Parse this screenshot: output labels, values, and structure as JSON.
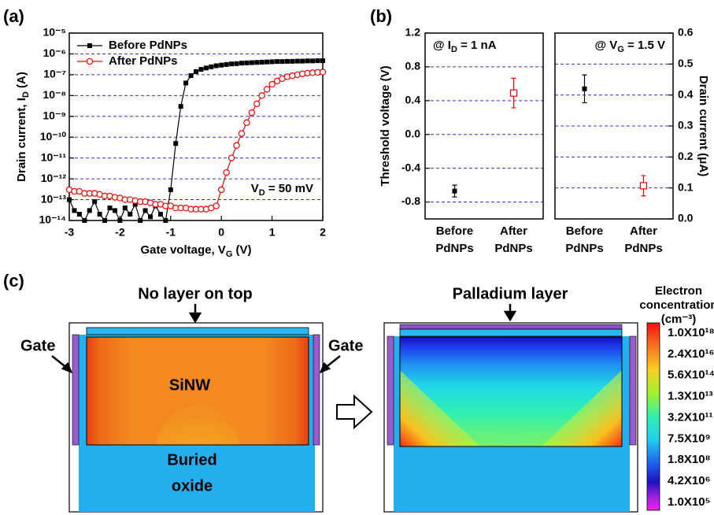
{
  "panel_labels": [
    "(a)",
    "(b)",
    "(c)"
  ],
  "chart_data": [
    {
      "type": "line",
      "log_y": true,
      "grid": true,
      "legend": "upper left",
      "xlabel": [
        "Gate voltage, V",
        "G",
        " (V)"
      ],
      "ylabel": [
        "Drain current, I",
        "D",
        " (A)"
      ],
      "annotation": [
        "V",
        "D",
        " = 50 mV"
      ],
      "xlim": [
        -3,
        2
      ],
      "xticks": [
        -3,
        -2,
        -1,
        0,
        1,
        2
      ],
      "ylim": [
        1e-14,
        1e-05
      ],
      "yticks": [
        {
          "value": 1e-14,
          "label": "10⁻¹⁴"
        },
        {
          "value": 1e-13,
          "label": "10⁻¹³"
        },
        {
          "value": 1e-12,
          "label": "10⁻¹²"
        },
        {
          "value": 1e-11,
          "label": "10⁻¹¹"
        },
        {
          "value": 1e-10,
          "label": "10⁻¹⁰"
        },
        {
          "value": 1e-09,
          "label": "10⁻⁹"
        },
        {
          "value": 1e-08,
          "label": "10⁻⁸"
        },
        {
          "value": 1e-07,
          "label": "10⁻⁷"
        },
        {
          "value": 1e-06,
          "label": "10⁻⁶"
        },
        {
          "value": 1e-05,
          "label": "10⁻⁵"
        }
      ],
      "x": [
        -3,
        -2.9,
        -2.8,
        -2.7,
        -2.6,
        -2.5,
        -2.4,
        -2.3,
        -2.2,
        -2.1,
        -2,
        -1.9,
        -1.8,
        -1.7,
        -1.6,
        -1.5,
        -1.4,
        -1.3,
        -1.2,
        -1.1,
        -1,
        -0.9,
        -0.8,
        -0.7,
        -0.6,
        -0.5,
        -0.4,
        -0.3,
        -0.2,
        -0.1,
        0,
        0.1,
        0.2,
        0.3,
        0.4,
        0.5,
        0.6,
        0.7,
        0.8,
        0.9,
        1,
        1.1,
        1.2,
        1.3,
        1.4,
        1.5,
        1.6,
        1.7,
        1.8,
        1.9,
        2
      ],
      "series": [
        {
          "name": "Before PdNPs",
          "color": "#000000",
          "marker": "filled-square",
          "values": [
            1e-13,
            3e-14,
            2e-14,
            1e-14,
            3e-14,
            8e-14,
            2e-14,
            1e-14,
            4e-14,
            3e-14,
            1e-14,
            4e-14,
            2e-14,
            6e-14,
            1e-14,
            3e-14,
            1.5e-14,
            5e-14,
            2e-14,
            1e-14,
            3e-13,
            5e-11,
            3e-09,
            4e-08,
            9e-08,
            1.4e-07,
            1.8e-07,
            2.1e-07,
            2.4e-07,
            2.7e-07,
            2.9e-07,
            3.1e-07,
            3.3e-07,
            3.4e-07,
            3.6e-07,
            3.7e-07,
            3.8e-07,
            3.9e-07,
            4e-07,
            4.1e-07,
            4.2e-07,
            4.3e-07,
            4.3e-07,
            4.4e-07,
            4.4e-07,
            4.5e-07,
            4.5e-07,
            4.6e-07,
            4.6e-07,
            4.7e-07,
            4.7e-07
          ]
        },
        {
          "name": "After PdNPs",
          "color": "#ff0000",
          "marker": "open-circle",
          "values": [
            3e-13,
            2.5e-13,
            2.5e-13,
            2e-13,
            2e-13,
            2e-13,
            1.8e-13,
            1.5e-13,
            1.5e-13,
            1.3e-13,
            1.2e-13,
            1e-13,
            1e-13,
            9e-14,
            8e-14,
            8e-14,
            7e-14,
            6e-14,
            6e-14,
            5e-14,
            5e-14,
            4e-14,
            4e-14,
            4e-14,
            3.5e-14,
            3.5e-14,
            3.5e-14,
            3.5e-14,
            4e-14,
            5e-14,
            3e-13,
            2e-12,
            1e-11,
            4e-11,
            1.5e-10,
            5e-10,
            1.5e-09,
            4e-09,
            1e-08,
            2e-08,
            3.5e-08,
            5e-08,
            6.5e-08,
            8e-08,
            9e-08,
            1e-07,
            1.1e-07,
            1.2e-07,
            1.25e-07,
            1.3e-07,
            1.35e-07
          ]
        }
      ]
    },
    {
      "type": "errorbar",
      "grid": true,
      "yaxis": "left",
      "annotation": [
        "@ I",
        "D",
        " = 1 nA"
      ],
      "ylabel": "Threshold voltage (V)",
      "ylim": [
        -1.0,
        1.2
      ],
      "yticks": [
        -0.8,
        -0.4,
        {
          "value": 0,
          "label": "0.0"
        },
        0.4,
        0.8,
        1.2
      ],
      "categories": [
        [
          "Before",
          "PdNPs"
        ],
        [
          "After",
          "PdNPs"
        ]
      ],
      "colors": [
        "#000000",
        "#ff0000"
      ],
      "markers": [
        "filled-square",
        "open-square"
      ],
      "values": [
        -0.67,
        0.49
      ],
      "errors": [
        0.07,
        0.175
      ]
    },
    {
      "type": "errorbar",
      "grid": true,
      "yaxis": "right",
      "annotation": [
        "@ V",
        "G",
        " = 1.5 V"
      ],
      "ylabel": "Drain current (μA)",
      "ylim": [
        0,
        0.6
      ],
      "yticks": [
        {
          "value": 0,
          "label": "0.0"
        },
        0.1,
        0.2,
        0.3,
        0.4,
        0.5,
        0.6
      ],
      "categories": [
        [
          "Before",
          "PdNPs"
        ],
        [
          "After",
          "PdNPs"
        ]
      ],
      "colors": [
        "#000000",
        "#ff0000"
      ],
      "markers": [
        "filled-square",
        "open-square"
      ],
      "values": [
        0.42,
        0.107
      ],
      "errors": [
        0.045,
        0.033
      ]
    }
  ],
  "diagram": {
    "left": {
      "top_label": "No layer on top",
      "gate_labels": [
        "Gate",
        "Gate"
      ],
      "channel": "SiNW",
      "oxide": [
        "Buried",
        "oxide"
      ]
    },
    "right": {
      "top_label": "Palladium layer"
    },
    "colorbar": {
      "title": [
        "Electron",
        "concentration",
        "(cm⁻³)"
      ],
      "labels": [
        "1.0X10¹⁸",
        "2.4X10¹⁶",
        "5.6X10¹⁴",
        "1.3X10¹³",
        "3.2X10¹¹",
        "7.5X10⁹",
        "1.8X10⁸",
        "4.2X10⁶",
        "1.0X10⁵"
      ]
    }
  }
}
